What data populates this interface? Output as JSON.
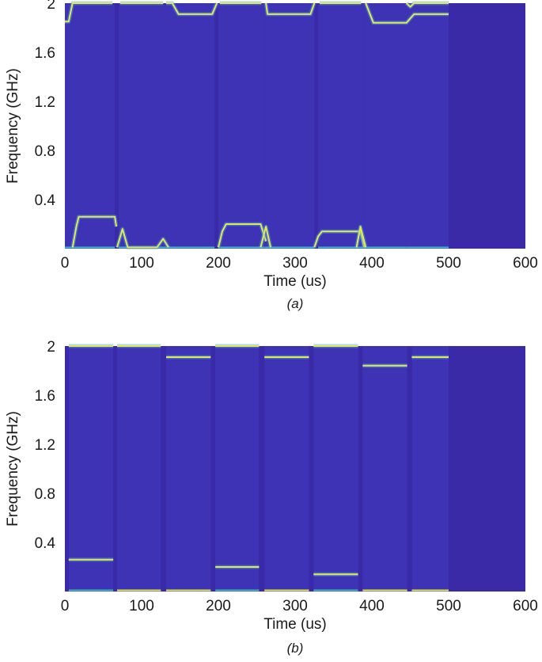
{
  "colors": {
    "background": "#3a2aa8",
    "segment": "#3d33b4",
    "gap": "#35269e",
    "trace": "#e8e84a",
    "trace_fringe": "#4aa8e8",
    "baseline": "#3fb8c8"
  },
  "chart_data": [
    {
      "type": "heatmap",
      "caption": "(a)",
      "xlabel": "Time (us)",
      "ylabel": "Frequency (GHz)",
      "xlim": [
        0,
        600
      ],
      "ylim": [
        0,
        2
      ],
      "xticks": [
        "0",
        "100",
        "200",
        "300",
        "400",
        "500",
        "600"
      ],
      "xtick_values": [
        0,
        100,
        200,
        300,
        400,
        500,
        600
      ],
      "yticks": [
        "0.4",
        "0.8",
        "1.2",
        "1.6",
        "2"
      ],
      "ytick_values": [
        0.4,
        0.8,
        1.2,
        1.6,
        2.0
      ],
      "grid": false,
      "segments": [
        {
          "t_start": 0,
          "t_end": 65,
          "low_freq": 0.26,
          "high_freq": 1.85
        },
        {
          "t_start": 70,
          "t_end": 130,
          "low_freq": 0.01,
          "high_freq": 2.0
        },
        {
          "t_start": 130,
          "t_end": 195,
          "low_freq": 0.01,
          "high_freq": 1.91
        },
        {
          "t_start": 200,
          "t_end": 260,
          "low_freq": 0.2,
          "high_freq": 2.0
        },
        {
          "t_start": 260,
          "t_end": 325,
          "low_freq": 0.01,
          "high_freq": 1.91
        },
        {
          "t_start": 330,
          "t_end": 390,
          "low_freq": 0.14,
          "high_freq": 2.0
        },
        {
          "t_start": 390,
          "t_end": 445,
          "low_freq": 0.01,
          "high_freq": 1.84
        },
        {
          "t_start": 445,
          "t_end": 500,
          "low_freq": 0.01,
          "high_freq": 1.91
        }
      ],
      "traces": [
        {
          "points": [
            [
              0,
              1.85
            ],
            [
              5,
              1.85
            ],
            [
              10,
              2.0
            ],
            [
              62,
              2.0
            ]
          ]
        },
        {
          "points": [
            [
              72,
              2.0
            ],
            [
              128,
              2.0
            ]
          ]
        },
        {
          "points": [
            [
              132,
              2.0
            ],
            [
              140,
              2.0
            ],
            [
              148,
              1.91
            ],
            [
              192,
              1.91
            ],
            [
              198,
              2.0
            ]
          ]
        },
        {
          "points": [
            [
              202,
              2.0
            ],
            [
              256,
              2.0
            ]
          ]
        },
        {
          "points": [
            [
              262,
              2.0
            ],
            [
              264,
              1.91
            ],
            [
              320,
              1.91
            ],
            [
              325,
              2.0
            ]
          ]
        },
        {
          "points": [
            [
              332,
              2.0
            ],
            [
              386,
              2.0
            ]
          ]
        },
        {
          "points": [
            [
              392,
              2.0
            ],
            [
              402,
              1.84
            ],
            [
              445,
              1.84
            ],
            [
              455,
              1.91
            ],
            [
              500,
              1.91
            ]
          ]
        },
        {
          "points": [
            [
              445,
              2.0
            ],
            [
              450,
              1.97
            ],
            [
              455,
              2.0
            ],
            [
              500,
              2.0
            ]
          ]
        },
        {
          "points": [
            [
              10,
              0.01
            ],
            [
              15,
              0.18
            ],
            [
              18,
              0.26
            ],
            [
              65,
              0.26
            ],
            [
              67,
              0.18
            ]
          ]
        },
        {
          "points": [
            [
              68,
              0.01
            ],
            [
              75,
              0.16
            ],
            [
              82,
              0.01
            ],
            [
              120,
              0.01
            ],
            [
              128,
              0.08
            ],
            [
              135,
              0.01
            ]
          ]
        },
        {
          "points": [
            [
              200,
              0.01
            ],
            [
              205,
              0.14
            ],
            [
              210,
              0.2
            ],
            [
              255,
              0.2
            ],
            [
              262,
              0.06
            ]
          ]
        },
        {
          "points": [
            [
              255,
              0.01
            ],
            [
              262,
              0.18
            ],
            [
              268,
              0.01
            ]
          ]
        },
        {
          "points": [
            [
              325,
              0.01
            ],
            [
              330,
              0.1
            ],
            [
              335,
              0.14
            ],
            [
              385,
              0.14
            ],
            [
              390,
              0.01
            ]
          ]
        },
        {
          "points": [
            [
              380,
              0.01
            ],
            [
              385,
              0.18
            ],
            [
              392,
              0.01
            ]
          ]
        }
      ]
    },
    {
      "type": "heatmap",
      "caption": "(b)",
      "xlabel": "Time (us)",
      "ylabel": "Frequency (GHz)",
      "xlim": [
        0,
        600
      ],
      "ylim": [
        0,
        2
      ],
      "xticks": [
        "0",
        "100",
        "200",
        "300",
        "400",
        "500",
        "600"
      ],
      "xtick_values": [
        0,
        100,
        200,
        300,
        400,
        500,
        600
      ],
      "yticks": [
        "0.4",
        "0.8",
        "1.2",
        "1.6",
        "2"
      ],
      "ytick_values": [
        0.4,
        0.8,
        1.2,
        1.6,
        2.0
      ],
      "grid": false,
      "segments": [
        {
          "t_start": 5,
          "t_end": 63,
          "low_freq": 0.26,
          "high_freq": 2.0
        },
        {
          "t_start": 68,
          "t_end": 125,
          "low_freq": 0.01,
          "high_freq": 2.0
        },
        {
          "t_start": 132,
          "t_end": 190,
          "low_freq": 0.01,
          "high_freq": 1.91
        },
        {
          "t_start": 196,
          "t_end": 253,
          "low_freq": 0.2,
          "high_freq": 2.0
        },
        {
          "t_start": 260,
          "t_end": 318,
          "low_freq": 0.01,
          "high_freq": 1.91
        },
        {
          "t_start": 324,
          "t_end": 382,
          "low_freq": 0.14,
          "high_freq": 2.0
        },
        {
          "t_start": 388,
          "t_end": 446,
          "low_freq": 0.01,
          "high_freq": 1.84
        },
        {
          "t_start": 452,
          "t_end": 500,
          "low_freq": 0.01,
          "high_freq": 1.91
        }
      ]
    }
  ]
}
